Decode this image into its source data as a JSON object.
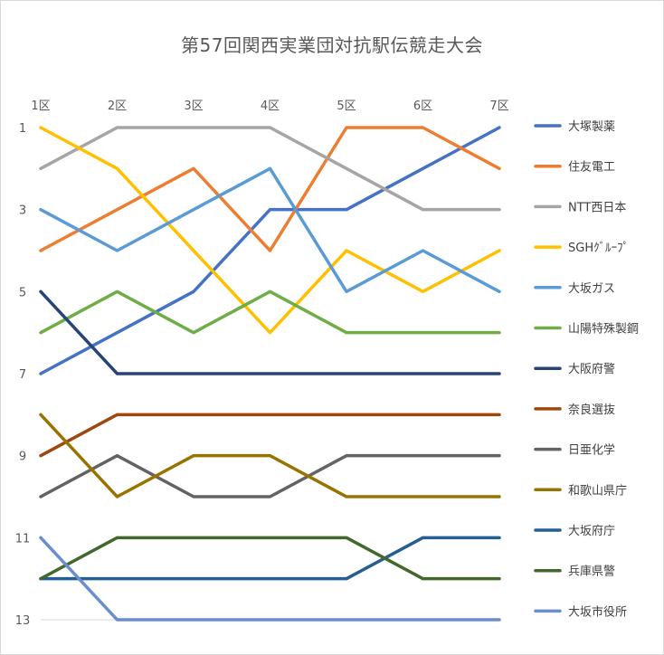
{
  "chart_data": {
    "type": "line",
    "title": "第57回関西実業団対抗駅伝競走大会",
    "xlabel": "",
    "ylabel": "",
    "categories": [
      "1区",
      "2区",
      "3区",
      "4区",
      "5区",
      "6区",
      "7区"
    ],
    "y_ticks": [
      "1",
      "3",
      "5",
      "7",
      "9",
      "11",
      "13"
    ],
    "ylim": [
      1,
      13
    ],
    "y_reversed": true,
    "grid": false,
    "legend_position": "right",
    "series": [
      {
        "name": "大塚製薬",
        "color": "#4472c4",
        "values": [
          7,
          6,
          5,
          3,
          3,
          2,
          1
        ]
      },
      {
        "name": "住友電工",
        "color": "#ed7d31",
        "values": [
          4,
          3,
          2,
          4,
          1,
          1,
          2
        ]
      },
      {
        "name": "NTT西日本",
        "color": "#a5a5a5",
        "values": [
          2,
          1,
          1,
          1,
          2,
          3,
          3
        ]
      },
      {
        "name": "SGHｸﾞﾙｰﾌﾟ",
        "color": "#ffc000",
        "values": [
          1,
          2,
          4,
          6,
          4,
          5,
          4
        ]
      },
      {
        "name": "大坂ガス",
        "color": "#5b9bd5",
        "values": [
          3,
          4,
          3,
          2,
          5,
          4,
          5
        ]
      },
      {
        "name": "山陽特殊製鋼",
        "color": "#70ad47",
        "values": [
          6,
          5,
          6,
          5,
          6,
          6,
          6
        ]
      },
      {
        "name": "大阪府警",
        "color": "#264478",
        "values": [
          5,
          7,
          7,
          7,
          7,
          7,
          7
        ]
      },
      {
        "name": "奈良選抜",
        "color": "#9e480e",
        "values": [
          9,
          8,
          8,
          8,
          8,
          8,
          8
        ]
      },
      {
        "name": "日亜化学",
        "color": "#636363",
        "values": [
          10,
          9,
          10,
          10,
          9,
          9,
          9
        ]
      },
      {
        "name": "和歌山県庁",
        "color": "#997300",
        "values": [
          8,
          10,
          9,
          9,
          10,
          10,
          10
        ]
      },
      {
        "name": "大坂府庁",
        "color": "#255e91",
        "values": [
          12,
          12,
          12,
          12,
          12,
          11,
          11
        ]
      },
      {
        "name": "兵庫県警",
        "color": "#43682b",
        "values": [
          12,
          11,
          11,
          11,
          11,
          12,
          12
        ]
      },
      {
        "name": "大坂市役所",
        "color": "#698ed0",
        "values": [
          11,
          13,
          13,
          13,
          13,
          13,
          13
        ]
      }
    ]
  }
}
